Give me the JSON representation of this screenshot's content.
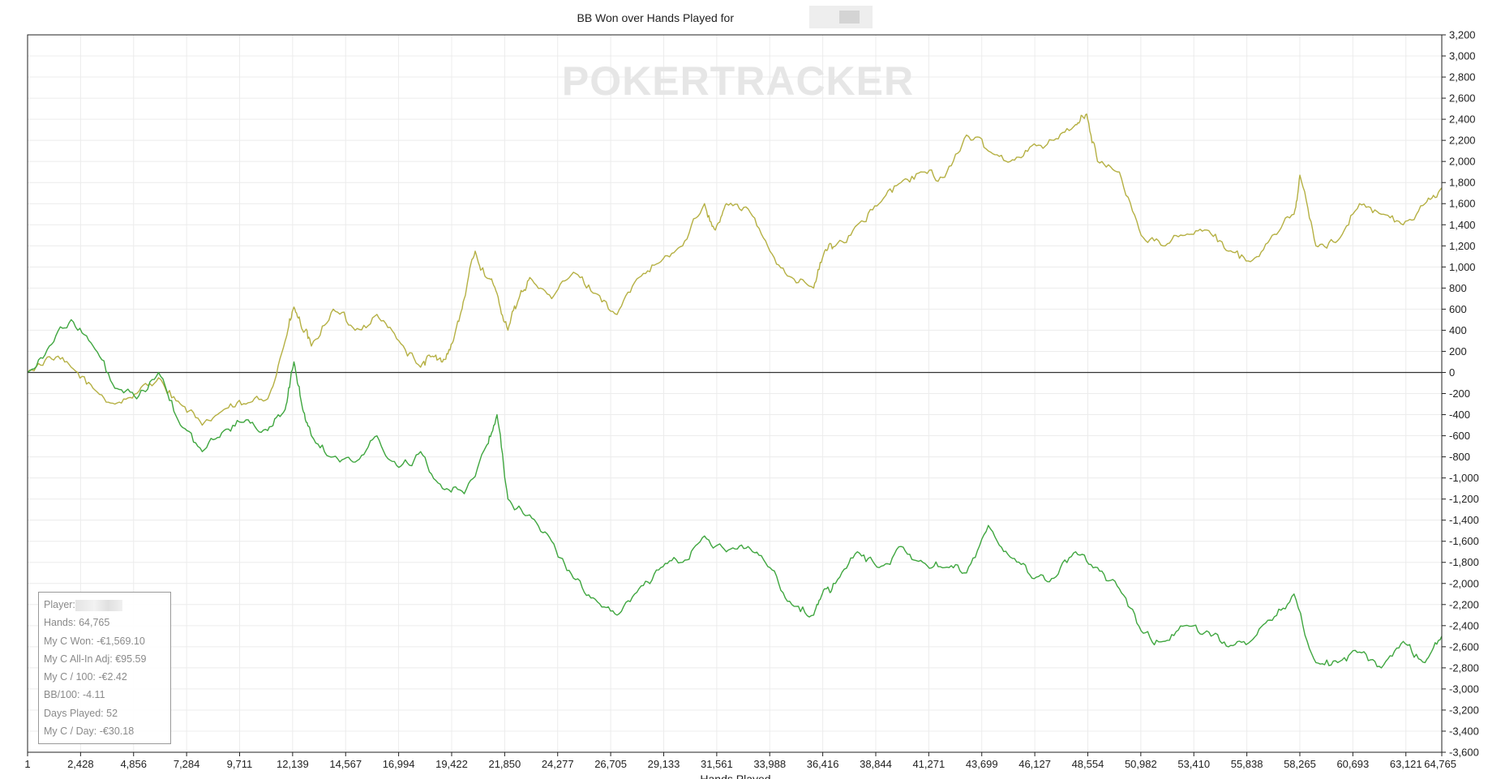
{
  "chart_data": {
    "type": "line",
    "title": "BB Won over Hands Played for",
    "xlabel": "Hands Played",
    "ylabel": "",
    "xlim": [
      1,
      64765
    ],
    "ylim": [
      -3600,
      3200
    ],
    "x_ticks": [
      "1",
      "2,428",
      "4,856",
      "7,284",
      "9,711",
      "12,139",
      "14,567",
      "16,994",
      "19,422",
      "21,850",
      "24,277",
      "26,705",
      "29,133",
      "31,561",
      "33,988",
      "36,416",
      "38,844",
      "41,271",
      "43,699",
      "46,127",
      "48,554",
      "50,982",
      "53,410",
      "55,838",
      "58,265",
      "60,693",
      "63,121",
      "64,765"
    ],
    "y_ticks": [
      "3,200",
      "3,000",
      "2,800",
      "2,600",
      "2,400",
      "2,200",
      "2,000",
      "1,800",
      "1,600",
      "1,400",
      "1,200",
      "1,000",
      "800",
      "600",
      "400",
      "200",
      "0",
      "-200",
      "-400",
      "-600",
      "-800",
      "-1,000",
      "-1,200",
      "-1,400",
      "-1,600",
      "-1,800",
      "-2,000",
      "-2,200",
      "-2,400",
      "-2,600",
      "-2,800",
      "-3,000",
      "-3,200",
      "-3,400",
      "-3,600"
    ],
    "grid": true,
    "watermark": "POKERTRACKER",
    "series": [
      {
        "color": "#b5b043",
        "x": [
          1,
          1000,
          2000,
          3000,
          4000,
          5000,
          6000,
          7000,
          8000,
          9000,
          10000,
          11000,
          11800,
          12200,
          12600,
          13000,
          14000,
          15000,
          16000,
          17000,
          18000,
          18500,
          19000,
          19500,
          20000,
          20500,
          21000,
          21500,
          22000,
          22500,
          23000,
          24000,
          25000,
          26000,
          27000,
          28000,
          29000,
          30000,
          31000,
          31500,
          32000,
          33000,
          34000,
          35000,
          36000,
          36500,
          37000,
          38000,
          39000,
          40000,
          41000,
          42000,
          43000,
          44000,
          45000,
          46000,
          47000,
          48000,
          48500,
          49000,
          50000,
          51000,
          52000,
          53000,
          54000,
          55000,
          56000,
          57000,
          58000,
          58265,
          59000,
          60000,
          61000,
          62000,
          63000,
          64000,
          64765
        ],
        "y": [
          0,
          150,
          50,
          -150,
          -300,
          -200,
          -50,
          -300,
          -500,
          -350,
          -300,
          -250,
          300,
          620,
          400,
          250,
          600,
          400,
          550,
          300,
          50,
          150,
          100,
          300,
          700,
          1150,
          900,
          750,
          400,
          700,
          900,
          700,
          950,
          750,
          550,
          900,
          1050,
          1200,
          1600,
          1350,
          1600,
          1550,
          1150,
          900,
          800,
          1150,
          1200,
          1400,
          1600,
          1800,
          1900,
          1850,
          2250,
          2100,
          2000,
          2150,
          2200,
          2350,
          2450,
          2000,
          1900,
          1300,
          1200,
          1300,
          1350,
          1150,
          1050,
          1300,
          1500,
          1870,
          1200,
          1250,
          1600,
          1500,
          1400,
          1600,
          1750
        ]
      },
      {
        "color": "#3fa63f",
        "x": [
          1,
          1000,
          2000,
          3000,
          4000,
          5000,
          6000,
          7000,
          8000,
          9000,
          10000,
          11000,
          11800,
          12200,
          12600,
          13000,
          14000,
          15000,
          16000,
          17000,
          18000,
          19000,
          20000,
          21000,
          21500,
          22000,
          23000,
          24000,
          25000,
          26000,
          27000,
          28000,
          29000,
          30000,
          31000,
          32000,
          33000,
          34000,
          35000,
          36000,
          36500,
          37000,
          38000,
          39000,
          40000,
          41000,
          42000,
          43000,
          44000,
          45000,
          46000,
          47000,
          48000,
          49000,
          50000,
          51000,
          52000,
          53000,
          54000,
          55000,
          56000,
          57000,
          58000,
          59000,
          60000,
          61000,
          62000,
          63000,
          64000,
          64765
        ],
        "y": [
          0,
          250,
          500,
          250,
          -150,
          -250,
          0,
          -500,
          -750,
          -550,
          -450,
          -550,
          -350,
          100,
          -350,
          -600,
          -800,
          -850,
          -600,
          -900,
          -750,
          -1100,
          -1150,
          -700,
          -400,
          -1200,
          -1350,
          -1600,
          -1950,
          -2150,
          -2300,
          -2050,
          -1850,
          -1800,
          -1550,
          -1700,
          -1650,
          -1850,
          -2200,
          -2300,
          -2050,
          -2000,
          -1700,
          -1850,
          -1650,
          -1800,
          -1850,
          -1900,
          -1450,
          -1750,
          -1950,
          -1950,
          -1700,
          -1850,
          -2050,
          -2450,
          -2550,
          -2400,
          -2450,
          -2600,
          -2550,
          -2350,
          -2100,
          -2750,
          -2750,
          -2650,
          -2800,
          -2550,
          -2750,
          -2500
        ]
      }
    ]
  },
  "stats": [
    {
      "label": "Player:",
      "value": ""
    },
    {
      "label": "Hands:",
      "value": "64,765"
    },
    {
      "label": "My C Won:",
      "value": "-€1,569.10"
    },
    {
      "label": "My C All-In Adj:",
      "value": "€95.59"
    },
    {
      "label": "My C / 100:",
      "value": "-€2.42"
    },
    {
      "label": "BB/100:",
      "value": "-4.11"
    },
    {
      "label": "Days Played:",
      "value": "52"
    },
    {
      "label": "My C / Day:",
      "value": "-€30.18"
    }
  ]
}
